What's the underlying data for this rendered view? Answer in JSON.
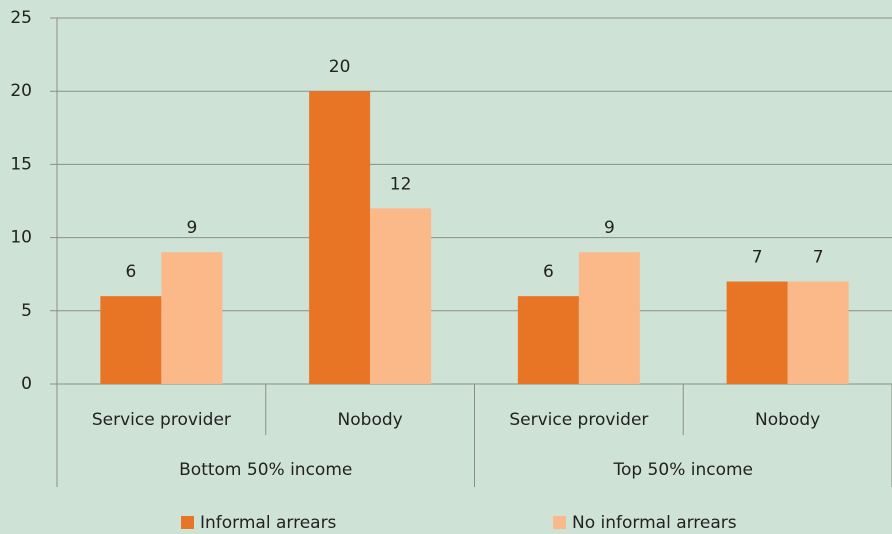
{
  "chart_data": {
    "type": "bar",
    "categories": [
      "Service provider",
      "Nobody",
      "Service provider",
      "Nobody"
    ],
    "groups": [
      "Bottom 50% income",
      "Top 50% income"
    ],
    "series": [
      {
        "name": "Informal arrears",
        "color": "#e87425",
        "values": [
          6,
          20,
          6,
          7
        ]
      },
      {
        "name": "No informal arrears",
        "color": "#fbb98a",
        "values": [
          9,
          12,
          9,
          7
        ]
      }
    ],
    "ylim": [
      0,
      25
    ],
    "yticks": [
      0,
      5,
      10,
      15,
      20,
      25
    ],
    "grid": true,
    "legend": "bottom"
  }
}
